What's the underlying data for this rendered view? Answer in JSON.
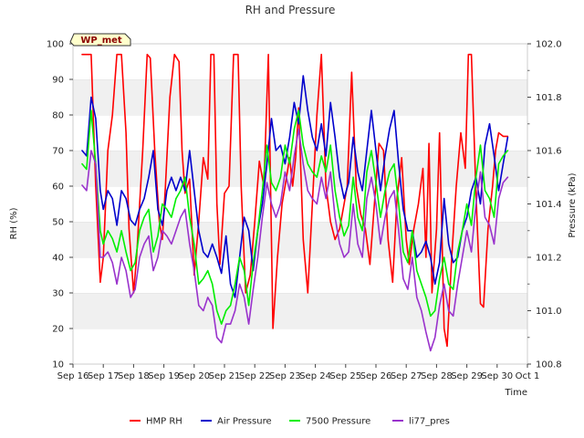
{
  "chart_data": {
    "type": "line",
    "title": "RH and Pressure",
    "xlabel": "Time",
    "ylabel_left": "RH (%)",
    "ylabel_right": "Pressure (kPa)",
    "badge": "WP_met",
    "x_ticks": [
      "Sep 16",
      "Sep 17",
      "Sep 18",
      "Sep 19",
      "Sep 20",
      "Sep 21",
      "Sep 22",
      "Sep 23",
      "Sep 24",
      "Sep 25",
      "Sep 26",
      "Sep 27",
      "Sep 28",
      "Sep 29",
      "Sep 30",
      "Oct 1"
    ],
    "xlim": [
      0,
      15
    ],
    "ylim_left": [
      10,
      100
    ],
    "ylim_right": [
      100.8,
      102.0
    ],
    "y_ticks_left": [
      10,
      20,
      30,
      40,
      50,
      60,
      70,
      80,
      90,
      100
    ],
    "y_ticks_right": [
      "100.8",
      "101.0",
      "101.2",
      "101.4",
      "101.6",
      "101.8",
      "102.0"
    ],
    "grid": "horizontal bands",
    "legend_position": "bottom-center",
    "series": [
      {
        "name": "HMP RH",
        "axis": "left",
        "color": "#ff0000",
        "x": [
          0.3,
          0.5,
          0.6,
          0.75,
          0.9,
          1.0,
          1.15,
          1.3,
          1.45,
          1.6,
          1.75,
          1.85,
          2.0,
          2.1,
          2.3,
          2.45,
          2.55,
          2.7,
          2.85,
          2.95,
          3.05,
          3.2,
          3.35,
          3.5,
          3.6,
          3.7,
          3.85,
          4.0,
          4.15,
          4.3,
          4.45,
          4.55,
          4.65,
          4.75,
          4.85,
          5.0,
          5.15,
          5.3,
          5.45,
          5.55,
          5.7,
          5.85,
          6.0,
          6.15,
          6.3,
          6.45,
          6.6,
          6.75,
          6.9,
          7.0,
          7.15,
          7.25,
          7.35,
          7.45,
          7.6,
          7.75,
          7.9,
          8.05,
          8.2,
          8.35,
          8.5,
          8.65,
          8.8,
          8.95,
          9.05,
          9.2,
          9.35,
          9.5,
          9.65,
          9.8,
          9.95,
          10.1,
          10.25,
          10.4,
          10.55,
          10.7,
          10.85,
          11.0,
          11.1,
          11.25,
          11.4,
          11.55,
          11.65,
          11.75,
          11.85,
          12.0,
          12.1,
          12.25,
          12.35,
          12.5,
          12.65,
          12.8,
          12.95,
          13.05,
          13.15,
          13.3,
          13.45,
          13.55,
          13.7,
          13.85,
          13.95,
          14.05,
          14.2,
          14.35
        ],
        "values": [
          97,
          97,
          97,
          60,
          33,
          40,
          70,
          80,
          97,
          97,
          75,
          48,
          30,
          40,
          70,
          97,
          96,
          70,
          50,
          45,
          60,
          85,
          97,
          95,
          70,
          58,
          62,
          35,
          50,
          68,
          62,
          97,
          97,
          55,
          38,
          58,
          60,
          97,
          97,
          60,
          30,
          35,
          50,
          67,
          60,
          97,
          20,
          40,
          55,
          60,
          68,
          60,
          68,
          82,
          45,
          30,
          55,
          80,
          97,
          60,
          50,
          45,
          48,
          55,
          60,
          92,
          60,
          52,
          48,
          38,
          55,
          72,
          70,
          45,
          33,
          57,
          68,
          45,
          38,
          48,
          55,
          65,
          40,
          72,
          30,
          48,
          75,
          20,
          15,
          40,
          60,
          75,
          65,
          97,
          97,
          58,
          27,
          26,
          48,
          60,
          70,
          75,
          74,
          74
        ]
      },
      {
        "name": "Air Pressure",
        "axis": "right",
        "color": "#0000cc",
        "x": [
          0.3,
          0.45,
          0.6,
          0.75,
          0.9,
          1.0,
          1.15,
          1.3,
          1.45,
          1.6,
          1.75,
          1.9,
          2.05,
          2.2,
          2.35,
          2.5,
          2.65,
          2.8,
          2.95,
          3.1,
          3.25,
          3.4,
          3.55,
          3.7,
          3.85,
          4.0,
          4.15,
          4.3,
          4.45,
          4.6,
          4.75,
          4.9,
          5.05,
          5.2,
          5.35,
          5.5,
          5.65,
          5.8,
          5.95,
          6.1,
          6.25,
          6.4,
          6.55,
          6.7,
          6.85,
          7.0,
          7.15,
          7.3,
          7.45,
          7.6,
          7.75,
          7.9,
          8.05,
          8.2,
          8.35,
          8.5,
          8.65,
          8.8,
          8.95,
          9.1,
          9.25,
          9.4,
          9.55,
          9.7,
          9.85,
          10.0,
          10.15,
          10.3,
          10.45,
          10.6,
          10.75,
          10.9,
          11.05,
          11.2,
          11.35,
          11.5,
          11.65,
          11.8,
          11.95,
          12.1,
          12.25,
          12.4,
          12.55,
          12.7,
          12.85,
          13.0,
          13.15,
          13.3,
          13.45,
          13.6,
          13.75,
          13.9,
          14.05,
          14.2,
          14.35
        ],
        "values": [
          101.6,
          101.58,
          101.8,
          101.72,
          101.45,
          101.38,
          101.45,
          101.42,
          101.32,
          101.45,
          101.42,
          101.34,
          101.32,
          101.38,
          101.42,
          101.5,
          101.6,
          101.38,
          101.32,
          101.45,
          101.5,
          101.45,
          101.5,
          101.45,
          101.6,
          101.45,
          101.3,
          101.22,
          101.2,
          101.25,
          101.2,
          101.14,
          101.28,
          101.1,
          101.05,
          101.2,
          101.35,
          101.3,
          101.15,
          101.3,
          101.4,
          101.55,
          101.72,
          101.6,
          101.62,
          101.55,
          101.65,
          101.78,
          101.7,
          101.88,
          101.75,
          101.65,
          101.6,
          101.7,
          101.58,
          101.78,
          101.65,
          101.5,
          101.42,
          101.48,
          101.65,
          101.52,
          101.45,
          101.6,
          101.75,
          101.6,
          101.45,
          101.58,
          101.68,
          101.75,
          101.55,
          101.38,
          101.3,
          101.3,
          101.2,
          101.22,
          101.26,
          101.2,
          101.1,
          101.18,
          101.42,
          101.25,
          101.18,
          101.2,
          101.3,
          101.35,
          101.45,
          101.5,
          101.4,
          101.62,
          101.7,
          101.58,
          101.45,
          101.55,
          101.65
        ]
      },
      {
        "name": "7500 Pressure",
        "axis": "right",
        "color": "#00ee00",
        "x": [
          0.3,
          0.45,
          0.6,
          0.75,
          0.9,
          1.0,
          1.15,
          1.3,
          1.45,
          1.6,
          1.75,
          1.9,
          2.05,
          2.2,
          2.35,
          2.5,
          2.65,
          2.8,
          2.95,
          3.1,
          3.25,
          3.4,
          3.55,
          3.7,
          3.85,
          4.0,
          4.15,
          4.3,
          4.45,
          4.6,
          4.75,
          4.9,
          5.05,
          5.2,
          5.35,
          5.5,
          5.65,
          5.8,
          5.95,
          6.1,
          6.25,
          6.4,
          6.55,
          6.7,
          6.85,
          7.0,
          7.15,
          7.3,
          7.45,
          7.6,
          7.75,
          7.9,
          8.05,
          8.2,
          8.35,
          8.5,
          8.65,
          8.8,
          8.95,
          9.1,
          9.25,
          9.4,
          9.55,
          9.7,
          9.85,
          10.0,
          10.15,
          10.3,
          10.45,
          10.6,
          10.75,
          10.9,
          11.05,
          11.2,
          11.35,
          11.5,
          11.65,
          11.8,
          11.95,
          12.1,
          12.25,
          12.4,
          12.55,
          12.7,
          12.85,
          13.0,
          13.15,
          13.3,
          13.45,
          13.6,
          13.75,
          13.9,
          14.05,
          14.2,
          14.35
        ],
        "values": [
          101.55,
          101.53,
          101.75,
          101.55,
          101.3,
          101.25,
          101.3,
          101.27,
          101.22,
          101.3,
          101.22,
          101.15,
          101.18,
          101.3,
          101.35,
          101.38,
          101.22,
          101.28,
          101.4,
          101.38,
          101.35,
          101.42,
          101.45,
          101.5,
          101.35,
          101.25,
          101.1,
          101.12,
          101.15,
          101.1,
          101.0,
          100.95,
          101.0,
          101.02,
          101.1,
          101.2,
          101.15,
          101.02,
          101.18,
          101.3,
          101.45,
          101.62,
          101.48,
          101.45,
          101.5,
          101.62,
          101.55,
          101.68,
          101.75,
          101.62,
          101.55,
          101.52,
          101.5,
          101.58,
          101.52,
          101.62,
          101.45,
          101.35,
          101.28,
          101.32,
          101.5,
          101.35,
          101.3,
          101.52,
          101.6,
          101.48,
          101.35,
          101.45,
          101.52,
          101.55,
          101.4,
          101.22,
          101.18,
          101.3,
          101.15,
          101.1,
          101.05,
          100.98,
          101.0,
          101.12,
          101.2,
          101.1,
          101.08,
          101.22,
          101.3,
          101.4,
          101.32,
          101.5,
          101.62,
          101.45,
          101.42,
          101.35,
          101.55,
          101.58,
          101.6
        ]
      },
      {
        "name": "li77_pres",
        "axis": "right",
        "color": "#9932cc",
        "x": [
          0.3,
          0.45,
          0.6,
          0.75,
          0.9,
          1.0,
          1.15,
          1.3,
          1.45,
          1.6,
          1.75,
          1.9,
          2.05,
          2.2,
          2.35,
          2.5,
          2.65,
          2.8,
          2.95,
          3.1,
          3.25,
          3.4,
          3.55,
          3.7,
          3.85,
          4.0,
          4.15,
          4.3,
          4.45,
          4.6,
          4.75,
          4.9,
          5.05,
          5.2,
          5.35,
          5.5,
          5.65,
          5.8,
          5.95,
          6.1,
          6.25,
          6.4,
          6.55,
          6.7,
          6.85,
          7.0,
          7.15,
          7.3,
          7.45,
          7.6,
          7.75,
          7.9,
          8.05,
          8.2,
          8.35,
          8.5,
          8.65,
          8.8,
          8.95,
          9.1,
          9.25,
          9.4,
          9.55,
          9.7,
          9.85,
          10.0,
          10.15,
          10.3,
          10.45,
          10.6,
          10.75,
          10.9,
          11.05,
          11.2,
          11.35,
          11.5,
          11.65,
          11.8,
          11.95,
          12.1,
          12.25,
          12.4,
          12.55,
          12.7,
          12.85,
          13.0,
          13.15,
          13.3,
          13.45,
          13.6,
          13.75,
          13.9,
          14.05,
          14.2,
          14.35
        ],
        "values": [
          101.47,
          101.45,
          101.6,
          101.55,
          101.2,
          101.2,
          101.22,
          101.18,
          101.1,
          101.2,
          101.15,
          101.05,
          101.08,
          101.2,
          101.25,
          101.28,
          101.15,
          101.2,
          101.3,
          101.28,
          101.25,
          101.3,
          101.35,
          101.38,
          101.25,
          101.15,
          101.02,
          101.0,
          101.05,
          101.02,
          100.9,
          100.88,
          100.95,
          100.95,
          101.0,
          101.1,
          101.05,
          100.95,
          101.08,
          101.2,
          101.35,
          101.48,
          101.4,
          101.35,
          101.4,
          101.52,
          101.45,
          101.58,
          101.68,
          101.55,
          101.45,
          101.42,
          101.4,
          101.5,
          101.42,
          101.52,
          101.35,
          101.25,
          101.2,
          101.22,
          101.4,
          101.25,
          101.2,
          101.42,
          101.5,
          101.4,
          101.25,
          101.35,
          101.42,
          101.45,
          101.3,
          101.12,
          101.08,
          101.2,
          101.05,
          101.0,
          100.92,
          100.85,
          100.9,
          101.02,
          101.1,
          101.0,
          100.98,
          101.1,
          101.2,
          101.3,
          101.22,
          101.4,
          101.52,
          101.35,
          101.32,
          101.25,
          101.42,
          101.48,
          101.5
        ]
      }
    ]
  }
}
